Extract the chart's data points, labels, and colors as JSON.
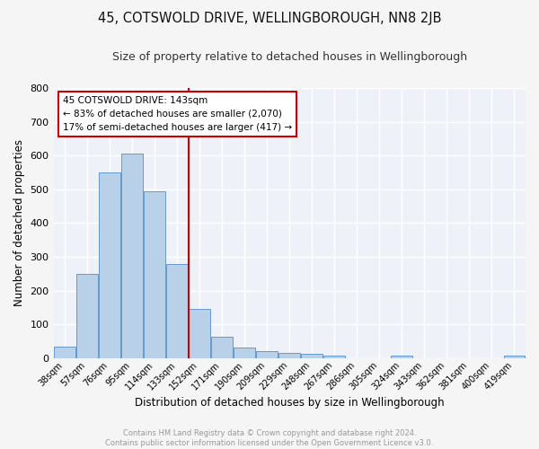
{
  "title": "45, COTSWOLD DRIVE, WELLINGBOROUGH, NN8 2JB",
  "subtitle": "Size of property relative to detached houses in Wellingborough",
  "xlabel": "Distribution of detached houses by size in Wellingborough",
  "ylabel": "Number of detached properties",
  "categories": [
    "38sqm",
    "57sqm",
    "76sqm",
    "95sqm",
    "114sqm",
    "133sqm",
    "152sqm",
    "171sqm",
    "190sqm",
    "209sqm",
    "229sqm",
    "248sqm",
    "267sqm",
    "286sqm",
    "305sqm",
    "324sqm",
    "343sqm",
    "362sqm",
    "381sqm",
    "400sqm",
    "419sqm"
  ],
  "values": [
    35,
    250,
    550,
    605,
    493,
    280,
    145,
    63,
    30,
    20,
    15,
    12,
    8,
    0,
    0,
    6,
    0,
    0,
    0,
    0,
    8
  ],
  "bar_color": "#b8d0e8",
  "bar_edge_color": "#6699cc",
  "vline_color": "#cc0000",
  "annotation_text": "45 COTSWOLD DRIVE: 143sqm\n← 83% of detached houses are smaller (2,070)\n17% of semi-detached houses are larger (417) →",
  "annotation_box_color": "#ffffff",
  "annotation_box_edge": "#cc0000",
  "ylim": [
    0,
    800
  ],
  "yticks": [
    0,
    100,
    200,
    300,
    400,
    500,
    600,
    700,
    800
  ],
  "footnote": "Contains HM Land Registry data © Crown copyright and database right 2024.\nContains public sector information licensed under the Open Government Licence v3.0.",
  "bg_color": "#eef2f8",
  "fig_color": "#f5f5f5",
  "grid_color": "#ffffff"
}
